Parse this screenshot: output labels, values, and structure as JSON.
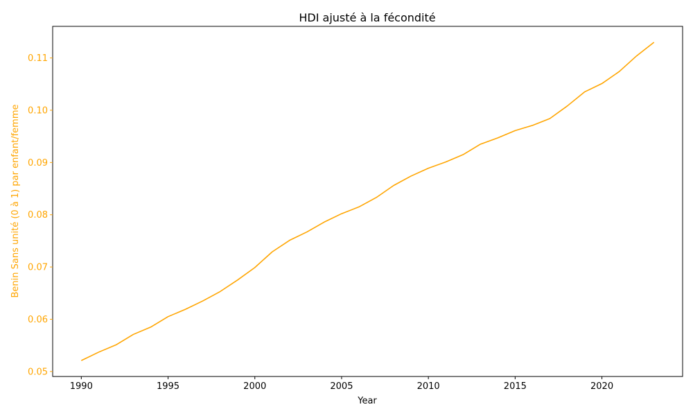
{
  "chart_data": {
    "type": "line",
    "title": "HDI ajusté à la fécondité",
    "xlabel": "Year",
    "ylabel": "Benin Sans unité (0 à 1) par enfant/femme",
    "xlim": [
      1988.35,
      2024.65
    ],
    "ylim": [
      0.04905,
      0.11605
    ],
    "x_ticks": [
      1990,
      1995,
      2000,
      2005,
      2010,
      2015,
      2020
    ],
    "y_ticks": [
      0.05,
      0.06,
      0.07,
      0.08,
      0.09,
      0.1,
      0.11
    ],
    "y_tick_labels": [
      "0.05",
      "0.06",
      "0.07",
      "0.08",
      "0.09",
      "0.10",
      "0.11"
    ],
    "grid": false,
    "series": [
      {
        "name": "Benin",
        "color": "#FFA500",
        "x": [
          1990,
          1991,
          1992,
          1993,
          1994,
          1995,
          1996,
          1997,
          1998,
          1999,
          2000,
          2001,
          2002,
          2003,
          2004,
          2005,
          2006,
          2007,
          2008,
          2009,
          2010,
          2011,
          2012,
          2013,
          2014,
          2015,
          2016,
          2017,
          2018,
          2019,
          2020,
          2021,
          2022,
          2023
        ],
        "y": [
          0.0521,
          0.0537,
          0.0551,
          0.0571,
          0.0585,
          0.0605,
          0.0619,
          0.0635,
          0.0653,
          0.0675,
          0.0699,
          0.0729,
          0.0751,
          0.0767,
          0.0786,
          0.0802,
          0.0815,
          0.0833,
          0.0856,
          0.0874,
          0.0889,
          0.0901,
          0.0915,
          0.0935,
          0.0947,
          0.0961,
          0.0971,
          0.0984,
          0.1008,
          0.1035,
          0.1051,
          0.1074,
          0.1104,
          0.113
        ]
      }
    ]
  }
}
